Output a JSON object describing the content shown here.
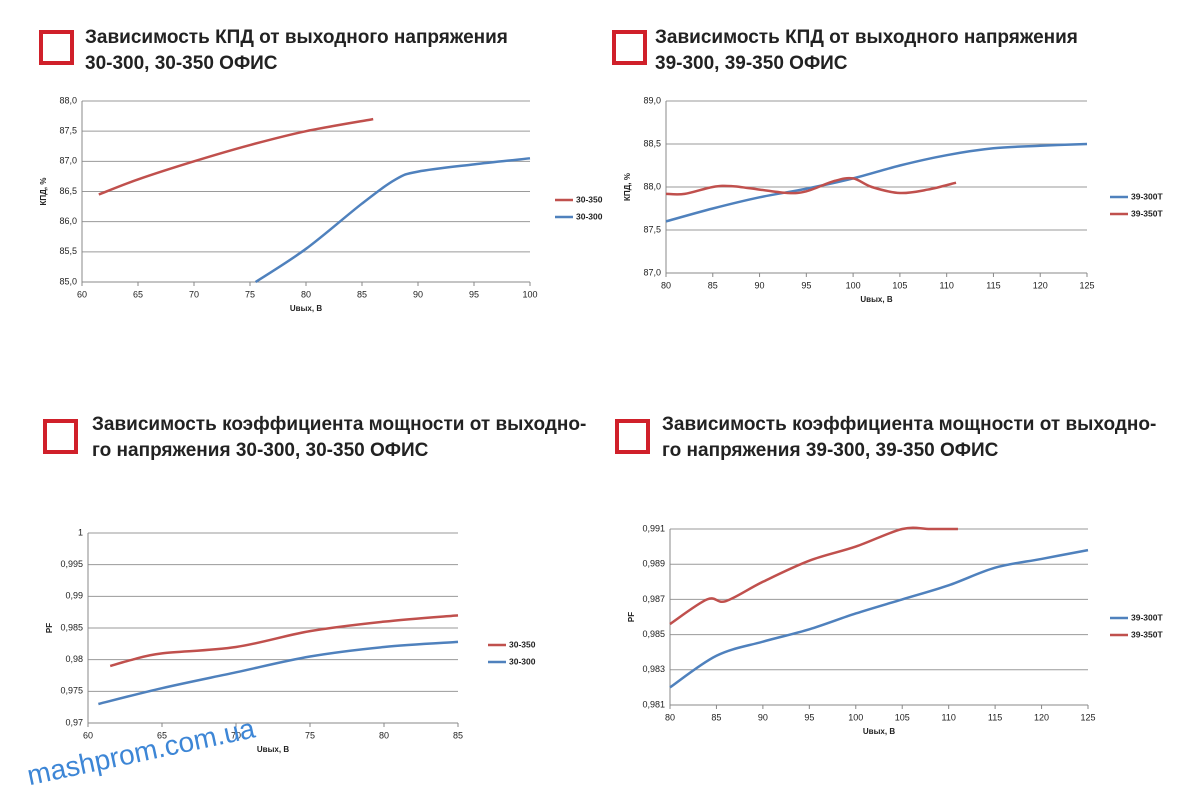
{
  "chart_data": [
    {
      "type": "line",
      "title": [
        "Зависимость КПД от выходного напряжения",
        "30-300, 30-350 ОФИС"
      ],
      "xlabel": "Uвых, В",
      "ylabel": "КПД, %",
      "xlim": [
        60,
        100
      ],
      "xticks": [
        60,
        65,
        70,
        75,
        80,
        85,
        90,
        95,
        100
      ],
      "ylim": [
        85,
        88
      ],
      "yticks": [
        {
          "value": 85,
          "label": "85,0"
        },
        {
          "value": 85.5,
          "label": "85,5"
        },
        {
          "value": 86,
          "label": "86,0"
        },
        {
          "value": 86.5,
          "label": "86,5"
        },
        {
          "value": 87,
          "label": "87,0"
        },
        {
          "value": 87.5,
          "label": "87,5"
        },
        {
          "value": 88,
          "label": "88,0"
        }
      ],
      "grid": true,
      "legend": "right",
      "series": [
        {
          "name": "30-350",
          "color": "#c0504d",
          "x": [
            61.5,
            65,
            70,
            75,
            80,
            86
          ],
          "values": [
            86.45,
            86.7,
            87.0,
            87.27,
            87.5,
            87.7
          ]
        },
        {
          "name": "30-300",
          "color": "#4f81bd",
          "x": [
            75.5,
            80,
            85,
            88,
            90,
            95,
            100
          ],
          "values": [
            85.0,
            85.55,
            86.3,
            86.7,
            86.83,
            86.95,
            87.05
          ]
        }
      ]
    },
    {
      "type": "line",
      "title": [
        "Зависимость КПД от выходного напряжения",
        "39-300, 39-350 ОФИС"
      ],
      "xlabel": "Uвых, В",
      "ylabel": "КПД, %",
      "xlim": [
        80,
        125
      ],
      "xticks": [
        80,
        85,
        90,
        95,
        100,
        105,
        110,
        115,
        120,
        125
      ],
      "ylim": [
        87,
        89
      ],
      "yticks": [
        {
          "value": 87,
          "label": "87,0"
        },
        {
          "value": 87.5,
          "label": "87,5"
        },
        {
          "value": 88,
          "label": "88,0"
        },
        {
          "value": 88.5,
          "label": "88,5"
        },
        {
          "value": 89,
          "label": "89,0"
        }
      ],
      "grid": true,
      "legend": "right",
      "series": [
        {
          "name": "39-300Т",
          "color": "#4f81bd",
          "x": [
            80,
            85,
            90,
            95,
            100,
            105,
            110,
            115,
            120,
            125
          ],
          "values": [
            87.6,
            87.75,
            87.88,
            87.98,
            88.1,
            88.25,
            88.37,
            88.45,
            88.48,
            88.5
          ]
        },
        {
          "name": "39-350Т",
          "color": "#c0504d",
          "x": [
            80,
            82,
            85,
            87,
            90,
            93,
            95,
            98,
            100,
            102,
            105,
            108,
            111
          ],
          "values": [
            87.92,
            87.92,
            88.0,
            88.01,
            87.97,
            87.93,
            87.95,
            88.07,
            88.1,
            88.0,
            87.93,
            87.97,
            88.05
          ]
        }
      ]
    },
    {
      "type": "line",
      "title": [
        "Зависимость коэффициента мощности от выходно-",
        "го напряжения 30-300, 30-350 ОФИС"
      ],
      "xlabel": "Uвых, В",
      "ylabel": "PF",
      "xlim": [
        60,
        85
      ],
      "xticks": [
        60,
        65,
        70,
        75,
        80,
        85
      ],
      "ylim": [
        0.97,
        1
      ],
      "yticks": [
        {
          "value": 0.97,
          "label": "0,97"
        },
        {
          "value": 0.975,
          "label": "0,975"
        },
        {
          "value": 0.98,
          "label": "0,98"
        },
        {
          "value": 0.985,
          "label": "0,985"
        },
        {
          "value": 0.99,
          "label": "0,99"
        },
        {
          "value": 0.995,
          "label": "0,995"
        },
        1
      ],
      "grid": true,
      "legend": "right",
      "series": [
        {
          "name": "30-350",
          "color": "#c0504d",
          "x": [
            61.5,
            63,
            65,
            70,
            75,
            80,
            85
          ],
          "values": [
            0.979,
            0.98,
            0.981,
            0.982,
            0.9845,
            0.986,
            0.987
          ]
        },
        {
          "name": "30-300",
          "color": "#4f81bd",
          "x": [
            60.7,
            65,
            70,
            75,
            80,
            85
          ],
          "values": [
            0.973,
            0.9755,
            0.978,
            0.9805,
            0.982,
            0.9828
          ]
        }
      ]
    },
    {
      "type": "line",
      "title": [
        "Зависимость коэффициента мощности от выходно-",
        "го напряжения 39-300, 39-350 ОФИС"
      ],
      "xlabel": "Uвых, В",
      "ylabel": "PF",
      "xlim": [
        80,
        125
      ],
      "xticks": [
        80,
        85,
        90,
        95,
        100,
        105,
        110,
        115,
        120,
        125
      ],
      "ylim": [
        0.981,
        0.991
      ],
      "yticks": [
        {
          "value": 0.981,
          "label": "0,981"
        },
        {
          "value": 0.983,
          "label": "0,983"
        },
        {
          "value": 0.985,
          "label": "0,985"
        },
        {
          "value": 0.987,
          "label": "0,987"
        },
        {
          "value": 0.989,
          "label": "0,989"
        },
        {
          "value": 0.991,
          "label": "0,991"
        }
      ],
      "grid": true,
      "legend": "right",
      "series": [
        {
          "name": "39-300T",
          "color": "#4f81bd",
          "x": [
            80,
            85,
            90,
            95,
            100,
            105,
            110,
            115,
            120,
            125
          ],
          "values": [
            0.982,
            0.9838,
            0.9846,
            0.9853,
            0.9862,
            0.987,
            0.9878,
            0.9888,
            0.9893,
            0.9898
          ]
        },
        {
          "name": "39-350T",
          "color": "#c0504d",
          "x": [
            80,
            84,
            86,
            90,
            95,
            100,
            105,
            108,
            111
          ],
          "values": [
            0.9856,
            0.987,
            0.9869,
            0.988,
            0.9892,
            0.99,
            0.991,
            0.991,
            0.991
          ]
        }
      ]
    }
  ],
  "watermark": "mashprom.com.ua"
}
